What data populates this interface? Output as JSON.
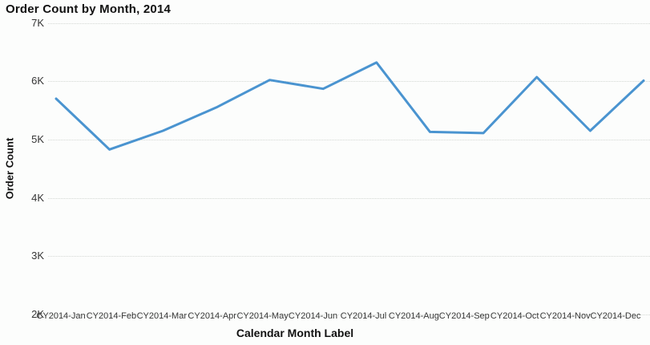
{
  "title": "Order Count by Month, 2014",
  "chart_data": {
    "type": "line",
    "title": "Order Count by Month, 2014",
    "xlabel": "Calendar Month Label",
    "ylabel": "Order Count",
    "categories": [
      "CY2014-Jan",
      "CY2014-Feb",
      "CY2014-Mar",
      "CY2014-Apr",
      "CY2014-May",
      "CY2014-Jun",
      "CY2014-Jul",
      "CY2014-Aug",
      "CY2014-Sep",
      "CY2014-Oct",
      "CY2014-Nov",
      "CY2014-Dec"
    ],
    "values": [
      5700,
      4830,
      5150,
      5550,
      6020,
      5870,
      6320,
      5130,
      5110,
      6070,
      5150,
      6010
    ],
    "units": "orders",
    "ylim": [
      2000,
      7000
    ],
    "y_tick_step": 1000,
    "y_tick_labels": [
      "7K",
      "6K",
      "5K",
      "4K",
      "3K",
      "2K"
    ],
    "grid": "horizontal-dotted",
    "legend": "none",
    "line_color": "#4a94d0",
    "grid_color": "#d3d7d3",
    "title_color": "#111111",
    "tick_color": "#363636"
  }
}
